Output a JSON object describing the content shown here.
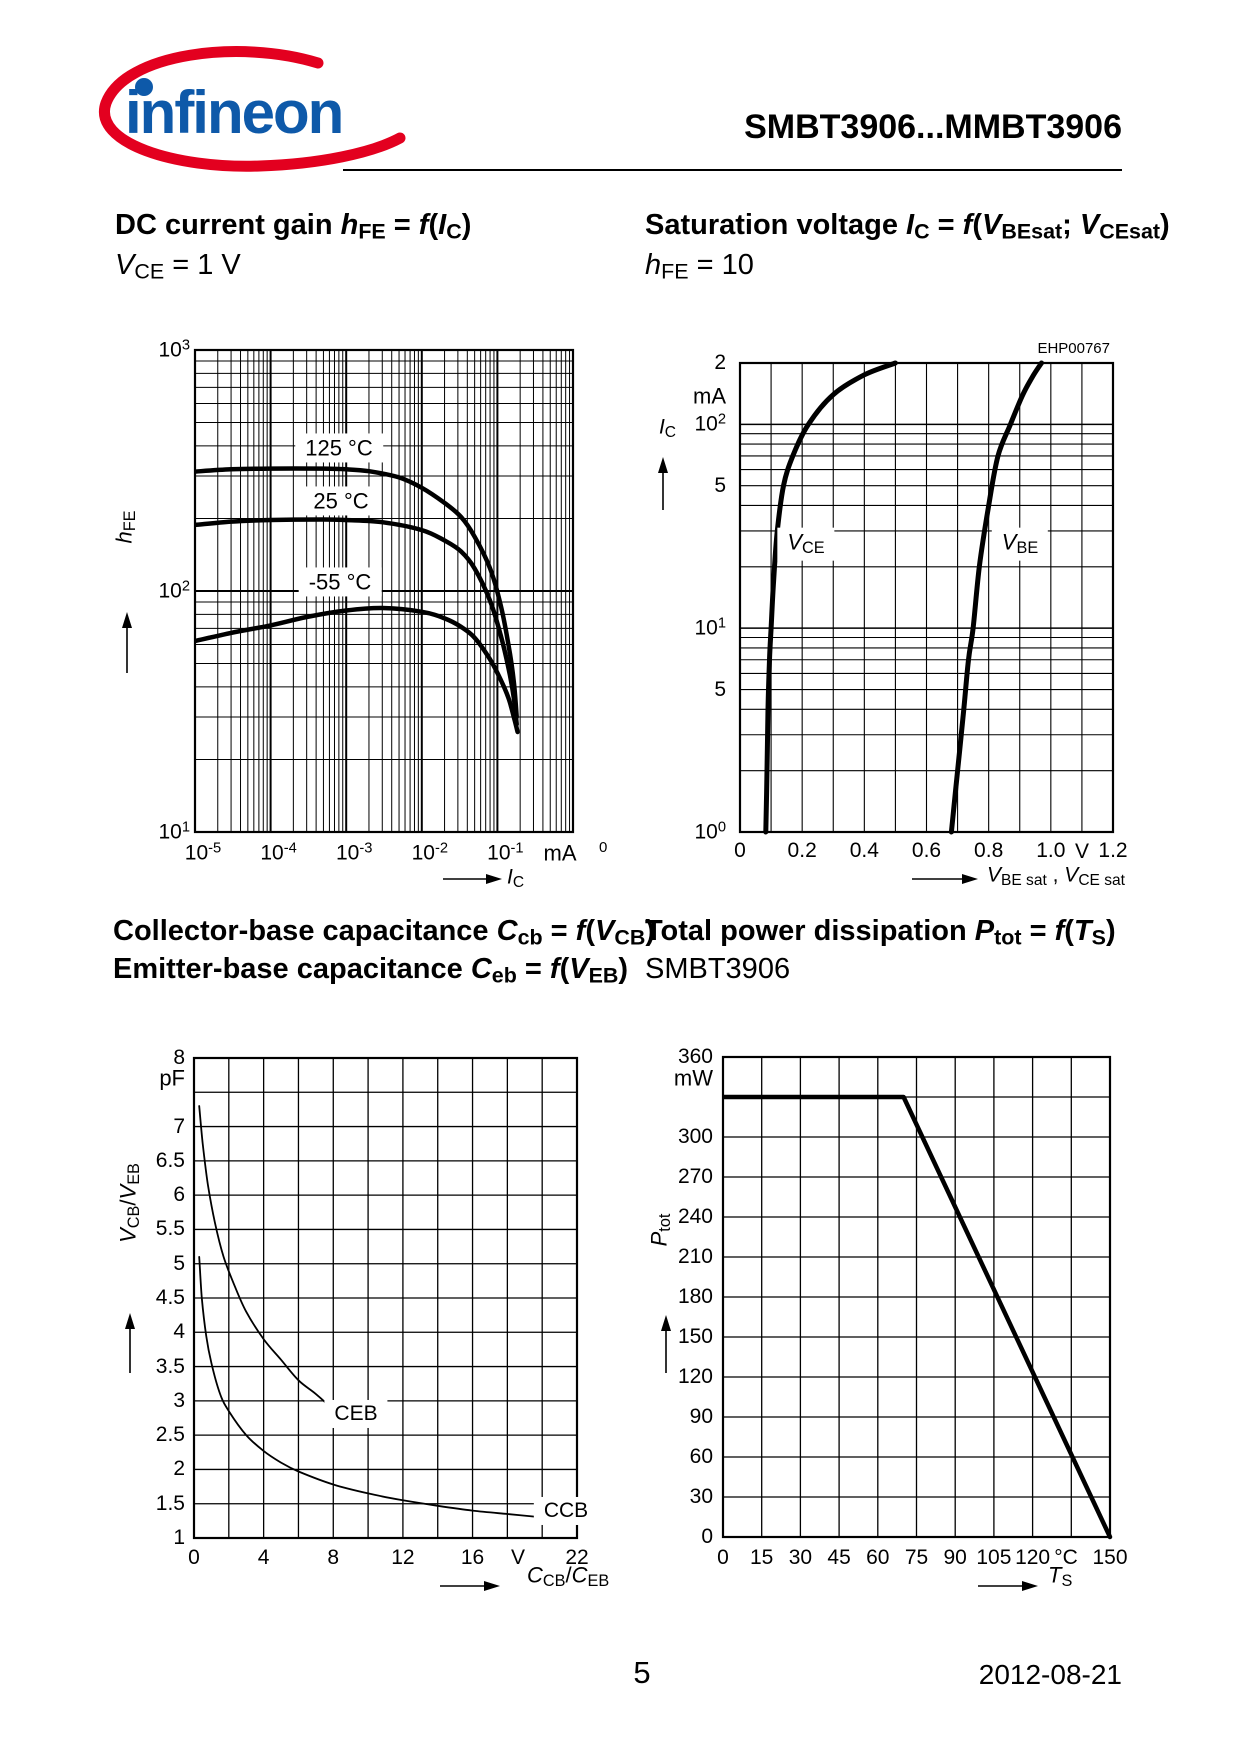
{
  "header": {
    "title": "SMBT3906...MMBT3906",
    "logo_text": "infineon"
  },
  "sections": {
    "s1_title": "DC current gain *h*_{FE} =  *f*(*I*_{C})",
    "s1_cond": "*V*_{CE} = 1 V",
    "s2_title": "Saturation voltage *I*_{C} = *f*(*V*_{BEsat}; *V*_{CEsat})",
    "s2_cond": "*h*_{FE} = 10",
    "s3_title1": "Collector-base capacitance *C*_{cb} = *f*(*V*_{CB})",
    "s3_title2": "Emitter-base capacitance *C*_{eb} = *f*(*V*_{EB})",
    "s4_title": "Total power dissipation *P*_{tot} = *f*(*T*_{S})",
    "s4_cond": "SMBT3906"
  },
  "footer": {
    "page": "5",
    "date": "2012-08-21"
  },
  "chart_data": [
    {
      "id": "c1",
      "type": "line",
      "title": "DC current gain hFE = f(IC)",
      "condition": "VCE = 1 V",
      "x_axis": {
        "scale": "log",
        "min": 1e-05,
        "max": 1,
        "unit": "mA",
        "edge_sup": "0",
        "label": "*I*_{C}",
        "ticks": [
          {
            "v": 1e-05,
            "t": "10^{-5}"
          },
          {
            "v": 0.0001,
            "t": "10^{-4}"
          },
          {
            "v": 0.001,
            "t": "10^{-3}"
          },
          {
            "v": 0.01,
            "t": "10^{-2}"
          },
          {
            "v": 0.1,
            "t": "10^{-1}"
          }
        ]
      },
      "y_axis": {
        "scale": "log",
        "min": 10,
        "max": 1000,
        "label": "*h*_{FE}",
        "ticks": [
          {
            "v": 1000,
            "t": "10^{3}"
          },
          {
            "v": 100,
            "t": "10^{2}"
          },
          {
            "v": 10,
            "t": "10^{1}"
          }
        ]
      },
      "series": [
        {
          "name": "125 °C",
          "points": [
            [
              1e-05,
              313
            ],
            [
              3e-05,
              320
            ],
            [
              0.0001,
              322
            ],
            [
              0.0005,
              322
            ],
            [
              0.001,
              320
            ],
            [
              0.002,
              314
            ],
            [
              0.005,
              296
            ],
            [
              0.01,
              268
            ],
            [
              0.02,
              232
            ],
            [
              0.033,
              203
            ],
            [
              0.05,
              168
            ],
            [
              0.08,
              124
            ],
            [
              0.11,
              88
            ],
            [
              0.14,
              60
            ],
            [
              0.165,
              42
            ],
            [
              0.18,
              30
            ]
          ]
        },
        {
          "name": "25 °C",
          "points": [
            [
              1e-05,
              188
            ],
            [
              3e-05,
              194
            ],
            [
              0.0001,
              197
            ],
            [
              0.0005,
              198
            ],
            [
              0.001,
              197
            ],
            [
              0.003,
              193
            ],
            [
              0.01,
              179
            ],
            [
              0.02,
              162
            ],
            [
              0.033,
              146
            ],
            [
              0.05,
              124
            ],
            [
              0.08,
              91
            ],
            [
              0.11,
              66
            ],
            [
              0.14,
              48
            ],
            [
              0.165,
              36
            ],
            [
              0.18,
              28
            ]
          ]
        },
        {
          "name": "-55 °C",
          "points": [
            [
              1e-05,
              62
            ],
            [
              3e-05,
              67
            ],
            [
              0.0001,
              72
            ],
            [
              0.0003,
              78
            ],
            [
              0.001,
              83
            ],
            [
              0.003,
              85
            ],
            [
              0.01,
              82
            ],
            [
              0.02,
              77
            ],
            [
              0.033,
              71
            ],
            [
              0.05,
              64
            ],
            [
              0.08,
              52
            ],
            [
              0.11,
              43
            ],
            [
              0.14,
              36
            ],
            [
              0.165,
              30
            ],
            [
              0.185,
              26
            ]
          ]
        }
      ]
    },
    {
      "id": "c2",
      "type": "line",
      "title": "Saturation voltage IC = f(VBEsat; VCEsat)",
      "condition": "hFE = 10",
      "figure_id": "EHP00767",
      "x_axis": {
        "scale": "linear",
        "min": 0,
        "max": 1.2,
        "grid_step": 0.1,
        "unit": "V",
        "unit_v": 1.1,
        "label": "*V*_{BE sat} , *V*_{CE sat}",
        "ticks": [
          {
            "v": 0,
            "t": "0"
          },
          {
            "v": 0.2,
            "t": "0.2"
          },
          {
            "v": 0.4,
            "t": "0.4"
          },
          {
            "v": 0.6,
            "t": "0.6"
          },
          {
            "v": 0.8,
            "t": "0.8"
          },
          {
            "v": 1.0,
            "t": "1.0"
          },
          {
            "v": 1.2,
            "t": "1.2"
          }
        ]
      },
      "y_axis": {
        "scale": "log",
        "min": 1,
        "max": 200,
        "unit": "mA",
        "label": "*I*_{C}",
        "ticks": [
          {
            "v": 200,
            "t": "2"
          },
          {
            "v": 100,
            "t": "10^{2}"
          },
          {
            "v": 50,
            "t": "5"
          },
          {
            "v": 10,
            "t": "10^{1}"
          },
          {
            "v": 5,
            "t": "5"
          },
          {
            "v": 1,
            "t": "10^{0}"
          }
        ]
      },
      "series": [
        {
          "name": "*V*_{CE}",
          "points": [
            [
              0.083,
              1
            ],
            [
              0.087,
              2
            ],
            [
              0.09,
              4
            ],
            [
              0.095,
              7
            ],
            [
              0.1,
              10
            ],
            [
              0.108,
              17
            ],
            [
              0.12,
              30
            ],
            [
              0.14,
              50
            ],
            [
              0.17,
              70
            ],
            [
              0.22,
              100
            ],
            [
              0.3,
              140
            ],
            [
              0.4,
              175
            ],
            [
              0.5,
              200
            ]
          ]
        },
        {
          "name": "*V*_{BE}",
          "points": [
            [
              0.68,
              1
            ],
            [
              0.7,
              2
            ],
            [
              0.72,
              4
            ],
            [
              0.735,
              7
            ],
            [
              0.75,
              10
            ],
            [
              0.77,
              20
            ],
            [
              0.8,
              40
            ],
            [
              0.83,
              70
            ],
            [
              0.87,
              100
            ],
            [
              0.91,
              140
            ],
            [
              0.945,
              175
            ],
            [
              0.97,
              200
            ]
          ]
        }
      ]
    },
    {
      "id": "c3",
      "type": "line",
      "title": "Collector-base capacitance Ccb = f(VCB); Emitter-base capacitance Ceb = f(VEB)",
      "x_axis": {
        "scale": "linear",
        "min": 0,
        "max": 22,
        "grid_step": 2,
        "unit": "V",
        "unit_v": 18.6,
        "label": "*C*_{CB}/*C*_{EB}",
        "ticks": [
          {
            "v": 0,
            "t": "0"
          },
          {
            "v": 4,
            "t": "4"
          },
          {
            "v": 8,
            "t": "8"
          },
          {
            "v": 12,
            "t": "12"
          },
          {
            "v": 16,
            "t": "16"
          },
          {
            "v": 22,
            "t": "22"
          }
        ]
      },
      "y_axis": {
        "scale": "linear",
        "min": 1,
        "max": 8,
        "grid_step": 0.5,
        "unit": "pF",
        "label": "*V*_{CB}/*V*_{EB}",
        "ticks": [
          {
            "v": 8,
            "t": "8"
          },
          {
            "v": 7,
            "t": "7"
          },
          {
            "v": 6.5,
            "t": "6.5"
          },
          {
            "v": 6,
            "t": "6"
          },
          {
            "v": 5.5,
            "t": "5.5"
          },
          {
            "v": 5,
            "t": "5"
          },
          {
            "v": 4.5,
            "t": "4.5"
          },
          {
            "v": 4,
            "t": "4"
          },
          {
            "v": 3.5,
            "t": "3.5"
          },
          {
            "v": 3,
            "t": "3"
          },
          {
            "v": 2.5,
            "t": "2.5"
          },
          {
            "v": 2,
            "t": "2"
          },
          {
            "v": 1.5,
            "t": "1.5"
          },
          {
            "v": 1,
            "t": "1"
          }
        ]
      },
      "series": [
        {
          "name": "CEB",
          "points": [
            [
              0.3,
              7.3
            ],
            [
              0.5,
              6.75
            ],
            [
              0.8,
              6.15
            ],
            [
              1.2,
              5.6
            ],
            [
              1.7,
              5.1
            ],
            [
              2.3,
              4.7
            ],
            [
              3,
              4.3
            ],
            [
              4,
              3.9
            ],
            [
              5,
              3.6
            ],
            [
              6,
              3.3
            ],
            [
              7,
              3.1
            ],
            [
              8,
              2.87
            ]
          ]
        },
        {
          "name": "CCB",
          "points": [
            [
              0.3,
              5.1
            ],
            [
              0.45,
              4.5
            ],
            [
              0.7,
              3.95
            ],
            [
              1,
              3.55
            ],
            [
              1.5,
              3.1
            ],
            [
              2,
              2.85
            ],
            [
              3,
              2.5
            ],
            [
              4,
              2.27
            ],
            [
              5,
              2.1
            ],
            [
              6,
              1.97
            ],
            [
              8,
              1.78
            ],
            [
              10,
              1.65
            ],
            [
              12,
              1.55
            ],
            [
              14,
              1.47
            ],
            [
              16,
              1.4
            ],
            [
              18,
              1.35
            ],
            [
              20,
              1.3
            ]
          ]
        }
      ]
    },
    {
      "id": "c4",
      "type": "line",
      "title": "Total power dissipation Ptot = f(TS)",
      "condition": "SMBT3906",
      "x_axis": {
        "scale": "linear",
        "min": 0,
        "max": 150,
        "grid_step": 15,
        "unit": "°C",
        "unit_v": 133,
        "label": "*T*_{S}",
        "ticks": [
          {
            "v": 0,
            "t": "0"
          },
          {
            "v": 15,
            "t": "15"
          },
          {
            "v": 30,
            "t": "30"
          },
          {
            "v": 45,
            "t": "45"
          },
          {
            "v": 60,
            "t": "60"
          },
          {
            "v": 75,
            "t": "75"
          },
          {
            "v": 90,
            "t": "90"
          },
          {
            "v": 105,
            "t": "105"
          },
          {
            "v": 120,
            "t": "120"
          },
          {
            "v": 150,
            "t": "150"
          }
        ]
      },
      "y_axis": {
        "scale": "linear",
        "min": 0,
        "max": 360,
        "grid_step": 30,
        "unit": "mW",
        "label": "*P*_{tot}",
        "ticks": [
          {
            "v": 360,
            "t": "360"
          },
          {
            "v": 300,
            "t": "300"
          },
          {
            "v": 270,
            "t": "270"
          },
          {
            "v": 240,
            "t": "240"
          },
          {
            "v": 210,
            "t": "210"
          },
          {
            "v": 180,
            "t": "180"
          },
          {
            "v": 150,
            "t": "150"
          },
          {
            "v": 120,
            "t": "120"
          },
          {
            "v": 90,
            "t": "90"
          },
          {
            "v": 60,
            "t": "60"
          },
          {
            "v": 30,
            "t": "30"
          },
          {
            "v": 0,
            "t": "0"
          }
        ]
      },
      "series": [
        {
          "name": "Ptot",
          "smooth": false,
          "points": [
            [
              0,
              330
            ],
            [
              70,
              330
            ],
            [
              150,
              0
            ]
          ]
        }
      ]
    }
  ]
}
